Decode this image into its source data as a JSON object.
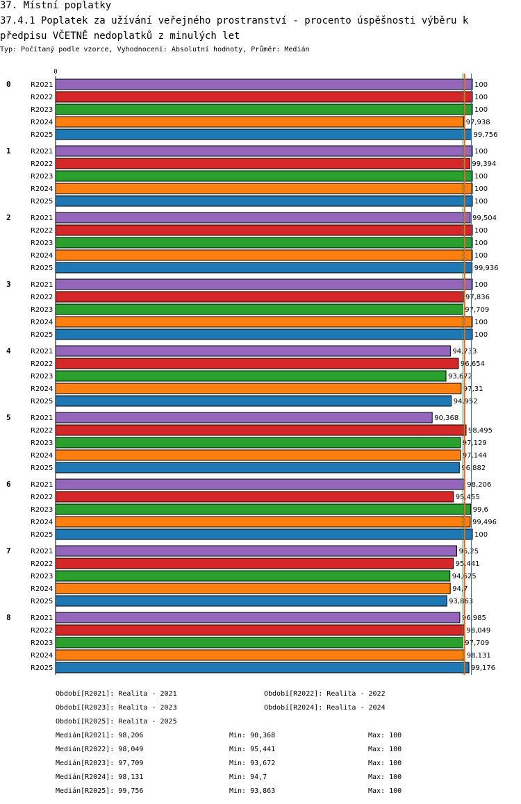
{
  "header": {
    "section_title": "37. Místní poplatky",
    "chart_title_line1": "37.4.1 Poplatek za užívání veřejného prostranství - procento úspěšnosti výběru k",
    "chart_title_line2": "předpisu VČETNĚ nedoplatků z minulých let",
    "subtitle": "Typ: Počítaný podle vzorce, Vyhodnocení: Absolutní hodnoty, Průměr: Medián"
  },
  "chart_data": {
    "type": "bar",
    "orientation": "horizontal",
    "axis_zero_label": "0",
    "xlim": [
      0,
      100
    ],
    "groups": [
      "0",
      "1",
      "2",
      "3",
      "4",
      "5",
      "6",
      "7",
      "8"
    ],
    "series": [
      {
        "name": "R2021",
        "color": "#9467bd",
        "values": [
          100,
          100,
          99.504,
          100,
          94.733,
          90.368,
          98.206,
          96.25,
          96.985
        ],
        "labels": [
          "100",
          "100",
          "99,504",
          "100",
          "94,733",
          "90,368",
          "98,206",
          "96,25",
          "96,985"
        ]
      },
      {
        "name": "R2022",
        "color": "#d62728",
        "values": [
          100,
          99.394,
          100,
          97.836,
          96.654,
          98.495,
          95.455,
          95.441,
          98.049
        ],
        "labels": [
          "100",
          "99,394",
          "100",
          "97,836",
          "96,654",
          "98,495",
          "95,455",
          "95,441",
          "98,049"
        ]
      },
      {
        "name": "R2023",
        "color": "#2ca02c",
        "values": [
          100,
          100,
          100,
          97.709,
          93.672,
          97.129,
          99.6,
          94.625,
          97.709
        ],
        "labels": [
          "100",
          "100",
          "100",
          "97,709",
          "93,672",
          "97,129",
          "99,6",
          "94,625",
          "97,709"
        ]
      },
      {
        "name": "R2024",
        "color": "#ff7f0e",
        "values": [
          97.938,
          100,
          100,
          100,
          97.31,
          97.144,
          99.496,
          94.7,
          98.131
        ],
        "labels": [
          "97,938",
          "100",
          "100",
          "100",
          "97,31",
          "97,144",
          "99,496",
          "94,7",
          "98,131"
        ]
      },
      {
        "name": "R2025",
        "color": "#1f77b4",
        "values": [
          99.756,
          100,
          99.936,
          100,
          94.952,
          96.882,
          100,
          93.863,
          99.176
        ],
        "labels": [
          "99,756",
          "100",
          "99,936",
          "100",
          "94,952",
          "96,882",
          "100",
          "93,863",
          "99,176"
        ]
      }
    ],
    "median_lines": [
      {
        "series": "R2021",
        "value": 98.206,
        "color": "#9467bd"
      },
      {
        "series": "R2022",
        "value": 98.049,
        "color": "#d62728"
      },
      {
        "series": "R2023",
        "value": 97.709,
        "color": "#2ca02c"
      },
      {
        "series": "R2024",
        "value": 98.131,
        "color": "#ff7f0e"
      },
      {
        "series": "R2025",
        "value": 99.756,
        "color": "#1f77b4"
      }
    ]
  },
  "legend": {
    "periods": [
      "Období[R2021]: Realita - 2021",
      "Období[R2022]: Realita - 2022",
      "Období[R2023]: Realita - 2023",
      "Období[R2024]: Realita - 2024",
      "Období[R2025]: Realita - 2025"
    ],
    "stats": [
      {
        "median": "Medián[R2021]: 98,206",
        "min": "Min: 90,368",
        "max": "Max: 100"
      },
      {
        "median": "Medián[R2022]: 98,049",
        "min": "Min: 95,441",
        "max": "Max: 100"
      },
      {
        "median": "Medián[R2023]: 97,709",
        "min": "Min: 93,672",
        "max": "Max: 100"
      },
      {
        "median": "Medián[R2024]: 98,131",
        "min": "Min: 94,7",
        "max": "Max: 100"
      },
      {
        "median": "Medián[R2025]: 99,756",
        "min": "Min: 93,863",
        "max": "Max: 100"
      }
    ]
  }
}
